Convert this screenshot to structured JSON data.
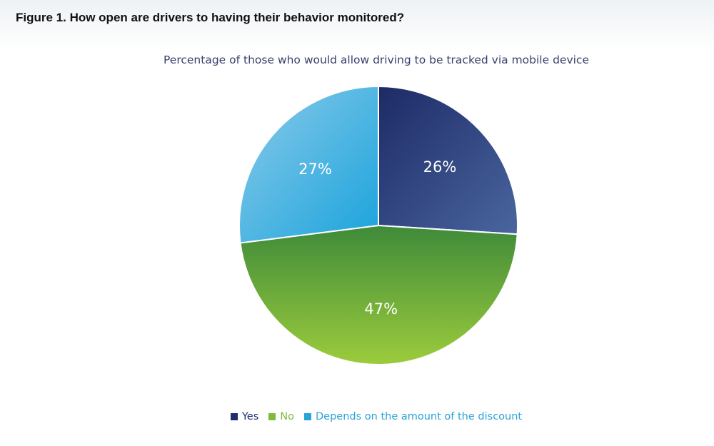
{
  "figure": {
    "title": "Figure 1. How open are drivers to having their behavior monitored?"
  },
  "chart_data": {
    "type": "pie",
    "title": "Percentage of those who would allow driving to be tracked via mobile device",
    "slices": [
      {
        "name": "Yes",
        "value": 26,
        "label": "26%",
        "color": "#2a3a7a",
        "label_color": "#1f2d6b"
      },
      {
        "name": "No",
        "value": 47,
        "label": "47%",
        "color": "#6aaa35",
        "label_color": "#7dbb3c"
      },
      {
        "name": "Depends on the amount of the discount",
        "value": 27,
        "label": "27%",
        "color": "#3aabe0",
        "label_color": "#2aa3d8"
      }
    ],
    "legend_placement": "bottom",
    "start_angle": "12 o'clock",
    "direction": "clockwise"
  }
}
